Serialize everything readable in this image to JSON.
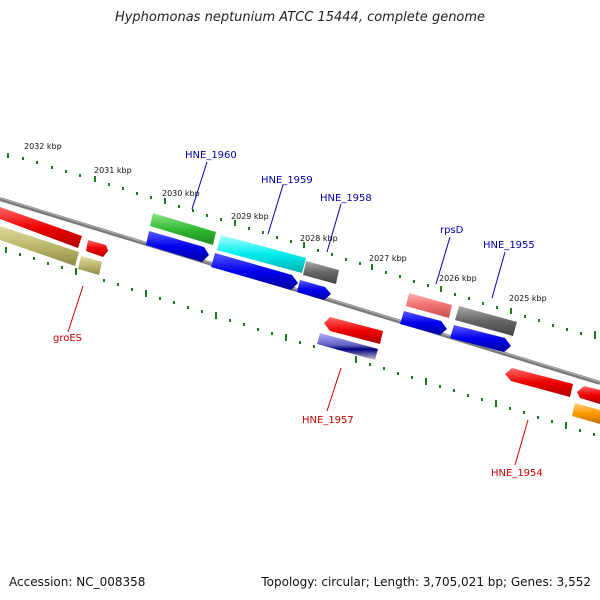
{
  "title": "Hyphomonas neptunium ATCC 15444, complete genome",
  "footer": {
    "accession": "Accession: NC_008358",
    "topology": "Topology: circular; Length: 3,705,021 bp; Genes: 3,552"
  },
  "ticks": [
    "2032 kbp",
    "2031 kbp",
    "2030 kbp",
    "2029 kbp",
    "2028 kbp",
    "2027 kbp",
    "2026 kbp",
    "2025 kbp"
  ],
  "gene_labels": {
    "hne1960": "HNE_1960",
    "hne1959": "HNE_1959",
    "hne1958": "HNE_1958",
    "rpsD": "rpsD",
    "hne1955": "HNE_1955",
    "groES": "groES",
    "hne1957": "HNE_1957",
    "hne1954": "HNE_1954"
  },
  "colors": {
    "label_blue": "#0000aa",
    "label_red": "#cc0000",
    "backbone": "#808080",
    "tick": "#1f7a1f"
  }
}
